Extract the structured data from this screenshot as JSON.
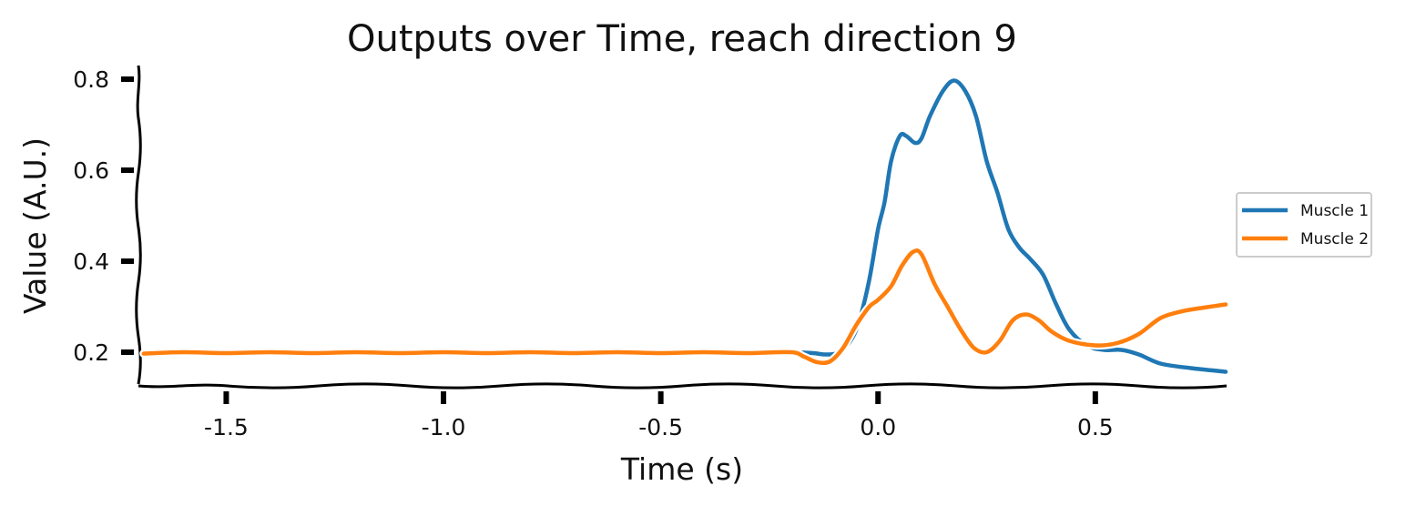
{
  "chart_data": {
    "type": "line",
    "title": "Outputs over Time, reach direction 9",
    "xlabel": "Time (s)",
    "ylabel": "Value (A.U.)",
    "xlim": [
      -1.7,
      0.8
    ],
    "ylim": [
      0.13,
      0.83
    ],
    "xticks": [
      -1.5,
      -1.0,
      -0.5,
      0.0,
      0.5
    ],
    "xtick_labels": [
      "-1.5",
      "-1.0",
      "-0.5",
      "0.0",
      "0.5"
    ],
    "yticks": [
      0.2,
      0.4,
      0.6,
      0.8
    ],
    "ytick_labels": [
      "0.2",
      "0.4",
      "0.6",
      "0.8"
    ],
    "grid": false,
    "legend_position": "right",
    "series": [
      {
        "name": "Muscle 1",
        "color": "#1f77b4",
        "points": [
          [
            -1.69,
            0.197
          ],
          [
            -1.6,
            0.2
          ],
          [
            -1.5,
            0.198
          ],
          [
            -1.4,
            0.2
          ],
          [
            -1.3,
            0.198
          ],
          [
            -1.2,
            0.2
          ],
          [
            -1.1,
            0.198
          ],
          [
            -1.0,
            0.2
          ],
          [
            -0.9,
            0.198
          ],
          [
            -0.8,
            0.2
          ],
          [
            -0.7,
            0.198
          ],
          [
            -0.6,
            0.2
          ],
          [
            -0.5,
            0.198
          ],
          [
            -0.4,
            0.2
          ],
          [
            -0.3,
            0.198
          ],
          [
            -0.2,
            0.2
          ],
          [
            -0.15,
            0.198
          ],
          [
            -0.12,
            0.195
          ],
          [
            -0.09,
            0.2
          ],
          [
            -0.06,
            0.23
          ],
          [
            -0.04,
            0.28
          ],
          [
            -0.02,
            0.36
          ],
          [
            0.0,
            0.47
          ],
          [
            0.015,
            0.53
          ],
          [
            0.03,
            0.62
          ],
          [
            0.05,
            0.675
          ],
          [
            0.065,
            0.675
          ],
          [
            0.085,
            0.66
          ],
          [
            0.1,
            0.67
          ],
          [
            0.12,
            0.72
          ],
          [
            0.15,
            0.775
          ],
          [
            0.175,
            0.797
          ],
          [
            0.2,
            0.775
          ],
          [
            0.225,
            0.72
          ],
          [
            0.25,
            0.62
          ],
          [
            0.275,
            0.55
          ],
          [
            0.3,
            0.47
          ],
          [
            0.325,
            0.43
          ],
          [
            0.35,
            0.405
          ],
          [
            0.38,
            0.37
          ],
          [
            0.41,
            0.305
          ],
          [
            0.44,
            0.25
          ],
          [
            0.48,
            0.215
          ],
          [
            0.52,
            0.205
          ],
          [
            0.56,
            0.205
          ],
          [
            0.6,
            0.195
          ],
          [
            0.65,
            0.175
          ],
          [
            0.72,
            0.165
          ],
          [
            0.8,
            0.157
          ]
        ]
      },
      {
        "name": "Muscle 2",
        "color": "#ff7f0e",
        "points": [
          [
            -1.69,
            0.197
          ],
          [
            -1.6,
            0.2
          ],
          [
            -1.5,
            0.198
          ],
          [
            -1.4,
            0.2
          ],
          [
            -1.3,
            0.198
          ],
          [
            -1.2,
            0.2
          ],
          [
            -1.1,
            0.198
          ],
          [
            -1.0,
            0.2
          ],
          [
            -0.9,
            0.198
          ],
          [
            -0.8,
            0.2
          ],
          [
            -0.7,
            0.198
          ],
          [
            -0.6,
            0.2
          ],
          [
            -0.5,
            0.198
          ],
          [
            -0.4,
            0.2
          ],
          [
            -0.3,
            0.198
          ],
          [
            -0.2,
            0.2
          ],
          [
            -0.17,
            0.19
          ],
          [
            -0.14,
            0.178
          ],
          [
            -0.11,
            0.18
          ],
          [
            -0.08,
            0.21
          ],
          [
            -0.05,
            0.26
          ],
          [
            -0.02,
            0.3
          ],
          [
            0.0,
            0.315
          ],
          [
            0.03,
            0.345
          ],
          [
            0.055,
            0.39
          ],
          [
            0.08,
            0.42
          ],
          [
            0.1,
            0.415
          ],
          [
            0.13,
            0.35
          ],
          [
            0.16,
            0.3
          ],
          [
            0.19,
            0.25
          ],
          [
            0.22,
            0.21
          ],
          [
            0.25,
            0.2
          ],
          [
            0.28,
            0.225
          ],
          [
            0.31,
            0.27
          ],
          [
            0.34,
            0.283
          ],
          [
            0.37,
            0.27
          ],
          [
            0.4,
            0.245
          ],
          [
            0.44,
            0.225
          ],
          [
            0.5,
            0.215
          ],
          [
            0.55,
            0.22
          ],
          [
            0.6,
            0.24
          ],
          [
            0.65,
            0.275
          ],
          [
            0.7,
            0.29
          ],
          [
            0.75,
            0.298
          ],
          [
            0.8,
            0.305
          ]
        ]
      }
    ]
  }
}
